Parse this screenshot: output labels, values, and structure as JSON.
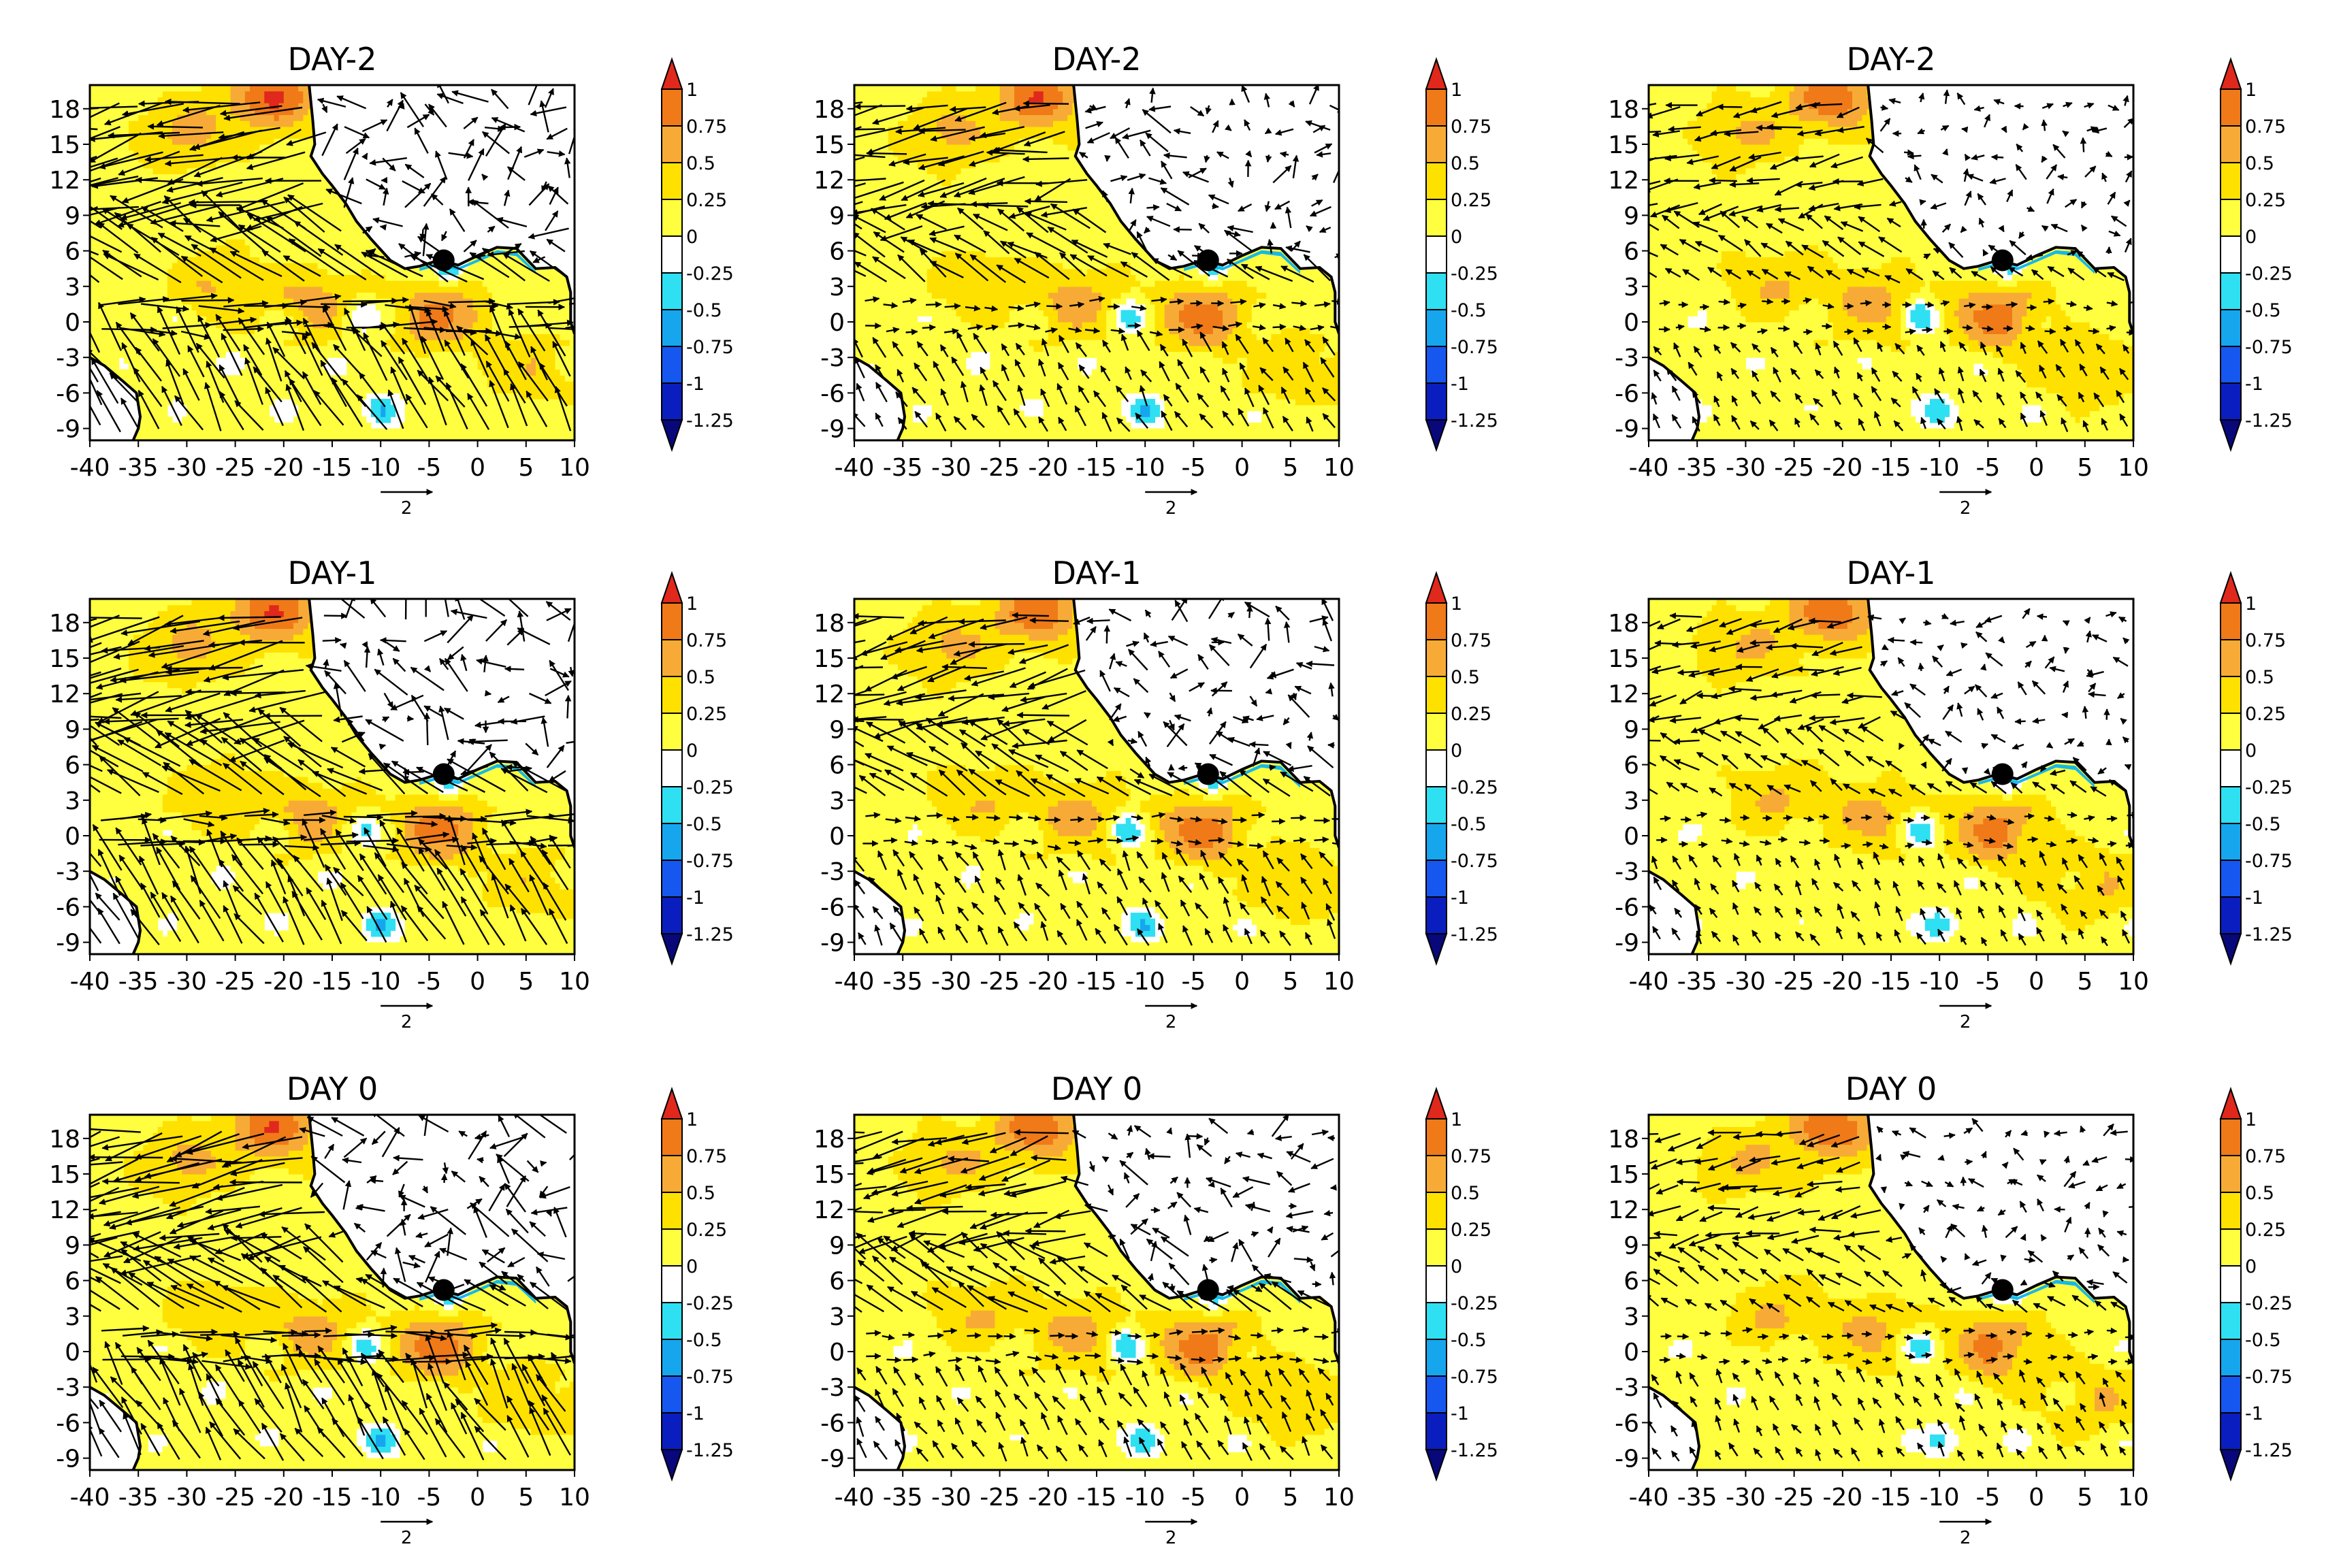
{
  "panels": [
    {
      "title": "DAY-2",
      "row": 0,
      "col": 0
    },
    {
      "title": "DAY-2",
      "row": 0,
      "col": 1
    },
    {
      "title": "DAY-2",
      "row": 0,
      "col": 2
    },
    {
      "title": "DAY-1",
      "row": 1,
      "col": 0
    },
    {
      "title": "DAY-1",
      "row": 1,
      "col": 1
    },
    {
      "title": "DAY-1",
      "row": 1,
      "col": 2
    },
    {
      "title": "DAY 0",
      "row": 2,
      "col": 0
    },
    {
      "title": "DAY 0",
      "row": 2,
      "col": 1
    },
    {
      "title": "DAY 0",
      "row": 2,
      "col": 2
    }
  ],
  "axes": {
    "lon_ticks": [
      "-40",
      "-35",
      "-30",
      "-25",
      "-20",
      "-15",
      "-10",
      "-5",
      "0",
      "5",
      "10"
    ],
    "lon_values": [
      -40,
      -35,
      -30,
      -25,
      -20,
      -15,
      -10,
      -5,
      0,
      5,
      10
    ],
    "lat_ticks": [
      "18",
      "15",
      "12",
      "9",
      "6",
      "3",
      "0",
      "-3",
      "-6",
      "-9"
    ],
    "lat_values": [
      18,
      15,
      12,
      9,
      6,
      3,
      0,
      -3,
      -6,
      -9
    ],
    "lon_range": [
      -40,
      10
    ],
    "lat_range": [
      -10,
      20
    ]
  },
  "vector_reference": {
    "label": "2",
    "magnitude": 2
  },
  "colorbar": {
    "labels": [
      "1",
      "0.75",
      "0.5",
      "0.25",
      "0",
      "-0.25",
      "-0.5",
      "-0.75",
      "-1",
      "-1.25"
    ],
    "bounds": [
      1,
      0.75,
      0.5,
      0.25,
      0,
      -0.25,
      -0.5,
      -0.75,
      -1,
      -1.25
    ],
    "colors": [
      "#e0281c",
      "#f07a18",
      "#f7ab36",
      "#ffe100",
      "#ffff40",
      "#ffffff",
      "#2ee0f2",
      "#16a6ee",
      "#1657f0",
      "#0a1ec0",
      "#08087a"
    ]
  },
  "marker": {
    "name": "station-marker",
    "lon": -3.5,
    "lat": 5.2,
    "color": "#000000"
  },
  "anomaly_centers": [
    {
      "lon": -4,
      "lat": 0.5,
      "value": 0.85
    },
    {
      "lon": -17,
      "lat": 1.5,
      "value": 0.6
    },
    {
      "lon": -30,
      "lat": 16,
      "value": 0.55
    },
    {
      "lon": -21,
      "lat": 19,
      "value": 1.0
    },
    {
      "lon": -27,
      "lat": 3,
      "value": 0.5
    },
    {
      "lon": 6,
      "lat": -4,
      "value": 0.5
    },
    {
      "lon": -12,
      "lat": 0.5,
      "value": -0.4
    },
    {
      "lon": -10,
      "lat": -7.5,
      "value": -0.35
    },
    {
      "lon": -3,
      "lat": 4.8,
      "value": -0.5
    }
  ]
}
